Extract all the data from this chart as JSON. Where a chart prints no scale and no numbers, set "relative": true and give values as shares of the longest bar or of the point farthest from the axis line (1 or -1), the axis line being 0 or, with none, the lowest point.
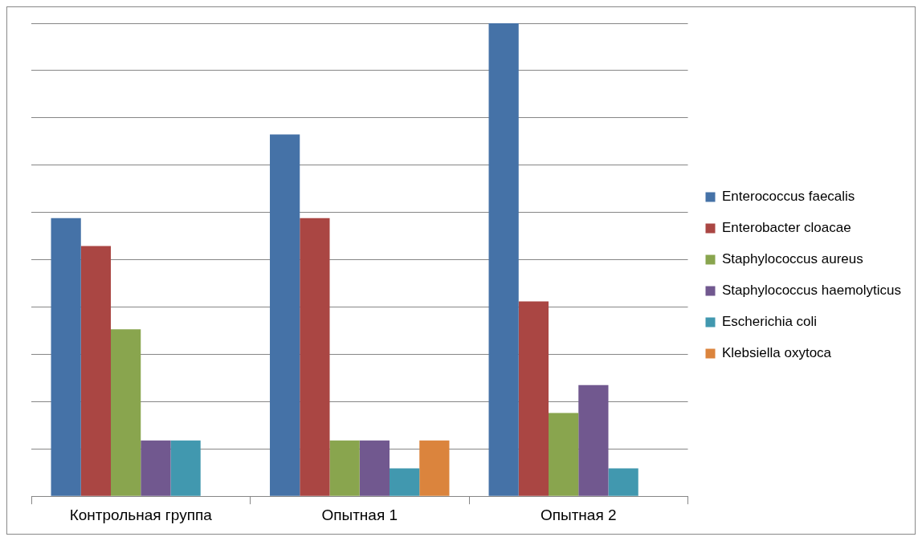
{
  "chart_data": {
    "type": "bar",
    "relative": true,
    "grid": "y",
    "legend": "right",
    "categories": [
      "Контрольная группа",
      "Опытная 1",
      "Опытная 2"
    ],
    "series": [
      {
        "name": "Enterococcus faecalis",
        "color": "#4572a7",
        "values": [
          0.588,
          0.765,
          1
        ]
      },
      {
        "name": "Enterobacter cloacae",
        "color": "#aa4643",
        "values": [
          0.529,
          0.588,
          0.412
        ]
      },
      {
        "name": "Staphylococcus aureus",
        "color": "#89a54e",
        "values": [
          0.353,
          0.118,
          0.176
        ]
      },
      {
        "name": "Staphylococcus haemolyticus",
        "color": "#71588f",
        "values": [
          0.118,
          0.118,
          0.235
        ]
      },
      {
        "name": "Escherichia coli",
        "color": "#4198af",
        "values": [
          0.118,
          0.059,
          0.059
        ]
      },
      {
        "name": "Klebsiella oxytoca",
        "color": "#db843d",
        "values": [
          null,
          0.118,
          null
        ]
      }
    ]
  }
}
